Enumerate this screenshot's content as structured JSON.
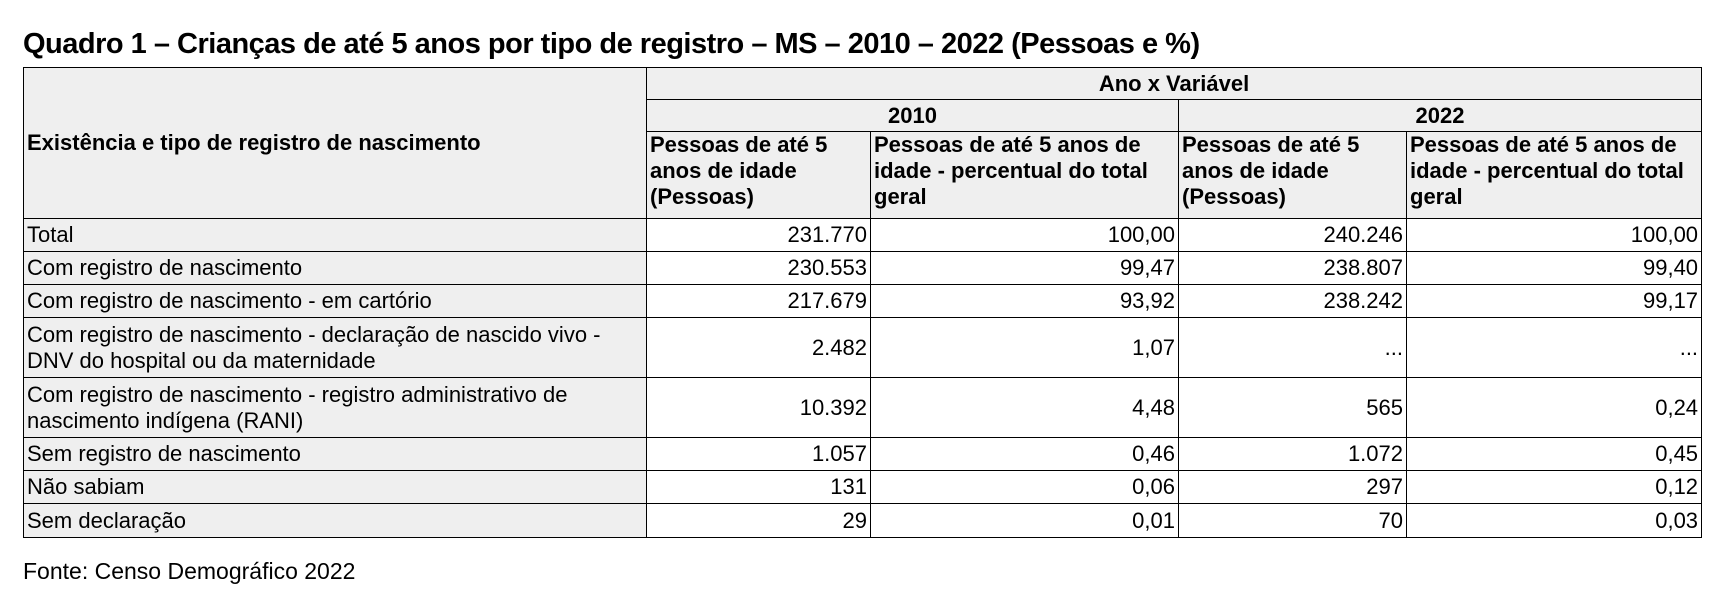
{
  "title": "Quadro 1 – Crianças de até 5 anos por tipo de registro – MS – 2010 – 2022 (Pessoas e %)",
  "table": {
    "row_header": "Existência e tipo de registro de nascimento",
    "group_header": "Ano x Variável",
    "years": [
      "2010",
      "2022"
    ],
    "col_headers": [
      "Pessoas de até 5 anos de idade (Pessoas)",
      "Pessoas de até 5 anos de idade - percentual do total geral",
      "Pessoas de até 5 anos de idade (Pessoas)",
      "Pessoas de até 5 anos de idade - percentual do total geral"
    ],
    "rows": [
      {
        "label": "Total",
        "values": [
          "231.770",
          "100,00",
          "240.246",
          "100,00"
        ]
      },
      {
        "label": "Com registro de nascimento",
        "values": [
          "230.553",
          "99,47",
          "238.807",
          "99,40"
        ]
      },
      {
        "label": "Com registro de nascimento - em cartório",
        "values": [
          "217.679",
          "93,92",
          "238.242",
          "99,17"
        ]
      },
      {
        "label": "Com registro de nascimento - declaração de nascido vivo - DNV do hospital ou da maternidade",
        "values": [
          "2.482",
          "1,07",
          "...",
          "..."
        ]
      },
      {
        "label": "Com registro de nascimento - registro administrativo de nascimento indígena (RANI)",
        "values": [
          "10.392",
          "4,48",
          "565",
          "0,24"
        ]
      },
      {
        "label": "Sem registro de nascimento",
        "values": [
          "1.057",
          "0,46",
          "1.072",
          "0,45"
        ]
      },
      {
        "label": "Não sabiam",
        "values": [
          "131",
          "0,06",
          "297",
          "0,12"
        ]
      },
      {
        "label": "Sem declaração",
        "values": [
          "29",
          "0,01",
          "70",
          "0,03"
        ]
      }
    ]
  },
  "source": "Fonte: Censo Demográfico 2022"
}
